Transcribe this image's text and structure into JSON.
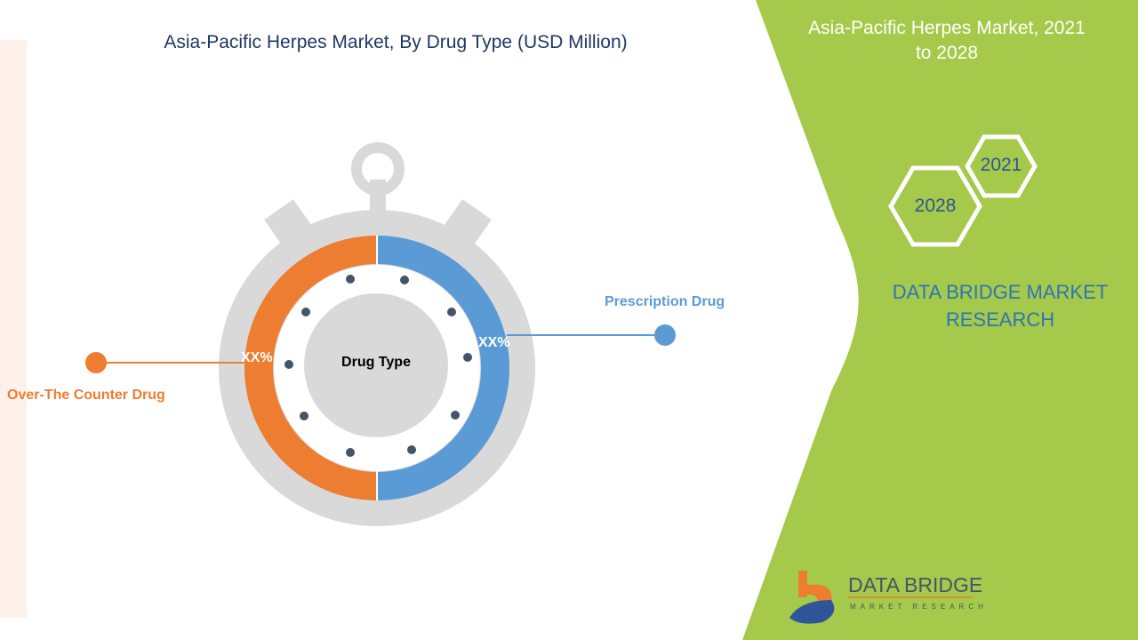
{
  "title": "Asia-Pacific Herpes Market, By Drug Type (USD Million)",
  "side_panel": {
    "title": "Asia-Pacific Herpes Market, 2021 to 2028",
    "year_start": "2021",
    "year_end": "2028",
    "brand": "DATA BRIDGE MARKET RESEARCH"
  },
  "diagram": {
    "center_label": "Drug Type",
    "segments": [
      {
        "label": "Prescription Drug",
        "value_label": "XX%",
        "color": "#5b9bd5"
      },
      {
        "label": "Over-The Counter Drug",
        "value_label": "XX%",
        "color": "#ed7d31"
      }
    ]
  },
  "logo": {
    "name": "DATA BRIDGE",
    "tagline": "MARKET RESEARCH"
  },
  "colors": {
    "panel": "#a5c94a",
    "title": "#1f3864",
    "ring_gray": "#d9d9d9",
    "dot": "#44546a"
  }
}
